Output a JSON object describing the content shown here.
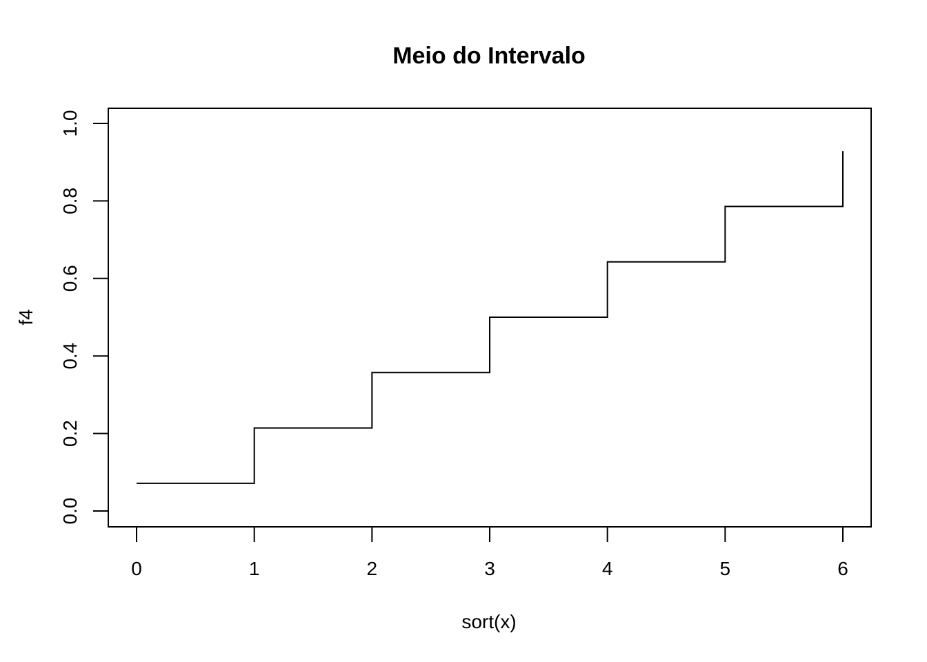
{
  "chart_data": {
    "type": "line",
    "step": true,
    "title": "Meio do Intervalo",
    "xlabel": "sort(x)",
    "ylabel": "f4",
    "xlim": [
      0,
      6
    ],
    "ylim": [
      0,
      1
    ],
    "x_ticks": [
      0,
      1,
      2,
      3,
      4,
      5,
      6
    ],
    "x_tick_labels": [
      "0",
      "1",
      "2",
      "3",
      "4",
      "5",
      "6"
    ],
    "y_ticks": [
      0.0,
      0.2,
      0.4,
      0.6,
      0.8,
      1.0
    ],
    "y_tick_labels": [
      "0.0",
      "0.2",
      "0.4",
      "0.6",
      "0.8",
      "1.0"
    ],
    "grid": false,
    "legend": false,
    "line_color": "#000000",
    "series": [
      {
        "x": [
          0,
          1,
          2,
          3,
          4,
          5,
          6
        ],
        "y": [
          0.0714,
          0.2143,
          0.3571,
          0.5,
          0.6429,
          0.7857,
          0.9286
        ]
      }
    ]
  }
}
